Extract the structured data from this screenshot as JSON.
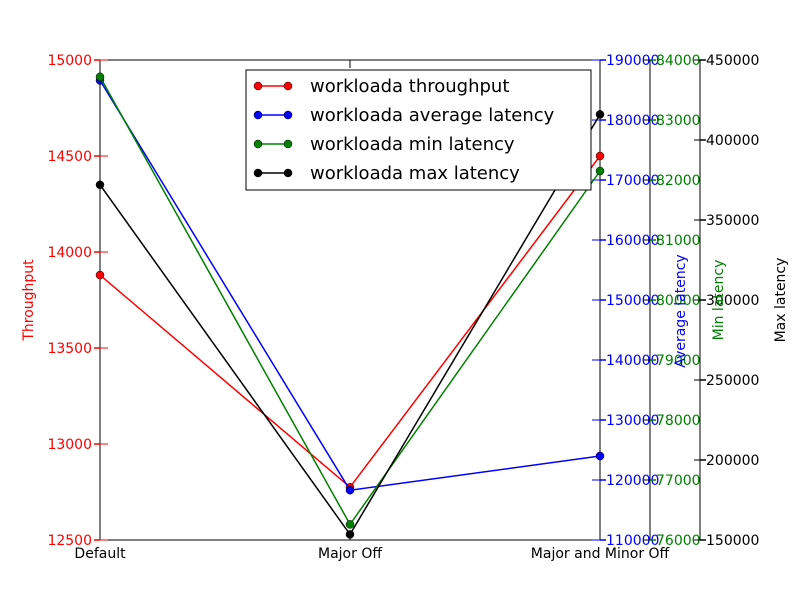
{
  "chart_data": {
    "type": "line",
    "categories": [
      "Default",
      "Major Off",
      "Major and Minor Off"
    ],
    "series": [
      {
        "name": "workloada throughput",
        "axis": "throughput",
        "color": "#ff0000",
        "values": [
          13880,
          12775,
          14500
        ]
      },
      {
        "name": "workloada average latency",
        "axis": "average",
        "color": "#0000ff",
        "values": [
          186600,
          118300,
          124000
        ]
      },
      {
        "name": "workloada min latency",
        "axis": "min",
        "color": "#008000",
        "values": [
          83720,
          76260,
          82150
        ]
      },
      {
        "name": "workloada max latency",
        "axis": "max",
        "color": "#000000",
        "values": [
          372000,
          153500,
          416000
        ]
      }
    ],
    "axes": {
      "throughput": {
        "label": "Throughput",
        "color": "#ff0000",
        "min": 12500,
        "max": 15000,
        "ticks": [
          12500,
          13000,
          13500,
          14000,
          14500,
          15000
        ],
        "tick_labels": [
          "12500",
          "13000",
          "13500",
          "14000",
          "14500",
          "15000"
        ]
      },
      "average": {
        "label": "Average latency",
        "color": "#0000ff",
        "min": 110000,
        "max": 190000,
        "ticks": [
          110000,
          120000,
          130000,
          140000,
          150000,
          160000,
          170000,
          180000,
          190000
        ],
        "tick_labels": [
          "110000",
          "120000",
          "130000",
          "140000",
          "150000",
          "160000",
          "170000",
          "180000",
          "190000"
        ]
      },
      "min": {
        "label": "Min latency",
        "color": "#008000",
        "min": 76000,
        "max": 84000,
        "ticks": [
          76000,
          77000,
          78000,
          79000,
          80000,
          81000,
          82000,
          83000,
          84000
        ],
        "tick_labels": [
          "76000",
          "77000",
          "78000",
          "79000",
          "80000",
          "81000",
          "82000",
          "83000",
          "84000"
        ]
      },
      "max": {
        "label": "Max latency",
        "color": "#000000",
        "min": 150000,
        "max": 450000,
        "ticks": [
          150000,
          200000,
          250000,
          300000,
          350000,
          400000,
          450000
        ],
        "tick_labels": [
          "150000",
          "200000",
          "250000",
          "300000",
          "350000",
          "400000",
          "450000"
        ]
      }
    },
    "legend_position": "top-center",
    "grid": false
  }
}
